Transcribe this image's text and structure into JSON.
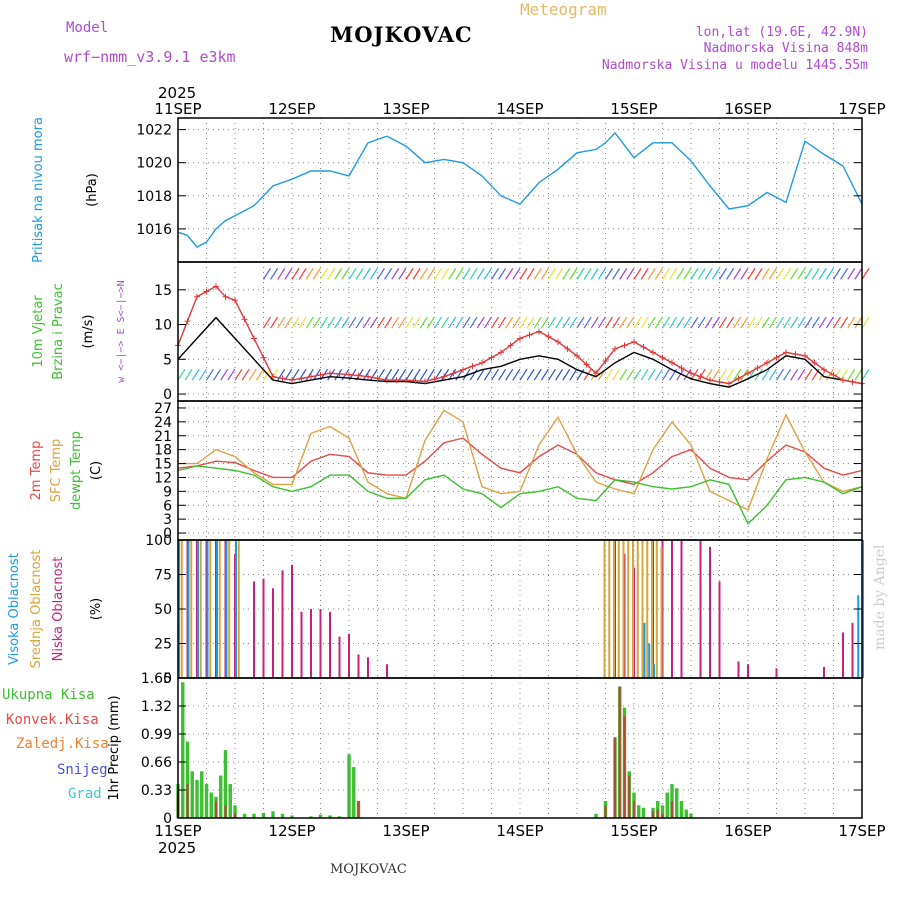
{
  "header": {
    "model_label": "Model",
    "model_name": "wrf−nmm_v3.9.1  e3km",
    "station": "MOJKOVAC",
    "product": "Meteogram",
    "lonlat": "lon,lat (19.6E, 42.9N)",
    "elevation": "Nadmorska Visina 848m",
    "model_elevation": "Nadmorska Visina u modelu 1445.55m",
    "credit": "made by Angel",
    "footer_station": "MOJKOVAC"
  },
  "colors": {
    "pressure": "#1e9be0",
    "gust": "#e03a3a",
    "wind": "#000000",
    "temp2m": "#e84848",
    "sfc": "#e0a040",
    "dewpt": "#3cc030",
    "cloud_high": "#1e9be0",
    "cloud_mid": "#d9a43a",
    "cloud_low": "#c8207a",
    "precip_total": "#3cc030",
    "precip_conv": "#b04a3a",
    "grid": "#888888"
  },
  "chart_data": {
    "type": "meteogram",
    "time_axis": {
      "year": "2025",
      "ticks": [
        "11SEP",
        "12SEP",
        "13SEP",
        "14SEP",
        "15SEP",
        "16SEP",
        "17SEP"
      ],
      "start_hour": 0,
      "end_hour": 144,
      "step_hours": 1
    },
    "panels": [
      {
        "id": "pressure",
        "ylabel_main": "Pritisak na nivou mora",
        "ylabel_unit": "(hPa)",
        "ylim": [
          1014.0,
          1022.7
        ],
        "yticks": [
          1016,
          1018,
          1020,
          1022
        ],
        "series": [
          {
            "name": "mslp",
            "hours": [
              0,
              2,
              4,
              6,
              8,
              10,
              12,
              16,
              20,
              24,
              28,
              32,
              36,
              40,
              44,
              48,
              52,
              56,
              60,
              64,
              68,
              72,
              76,
              80,
              84,
              88,
              90,
              92,
              96,
              100,
              104,
              108,
              112,
              116,
              120,
              124,
              128,
              132,
              136,
              140,
              144
            ],
            "values": [
              1015.8,
              1015.6,
              1014.9,
              1015.2,
              1016.0,
              1016.5,
              1016.8,
              1017.4,
              1018.6,
              1019.0,
              1019.5,
              1019.5,
              1019.2,
              1021.2,
              1021.6,
              1021.0,
              1020.0,
              1020.2,
              1020.0,
              1019.2,
              1018.0,
              1017.5,
              1018.8,
              1019.6,
              1020.6,
              1020.8,
              1021.2,
              1021.8,
              1020.3,
              1021.2,
              1021.2,
              1020.1,
              1018.6,
              1017.2,
              1017.4,
              1018.2,
              1017.6,
              1021.3,
              1020.5,
              1019.8,
              1017.5
            ]
          }
        ]
      },
      {
        "id": "wind",
        "ylabel_main": "10m Vjetar",
        "ylabel_sub": "Brzina i Pravac",
        "ylabel_unit": "(m/s)",
        "dir_hint": "w <−|−> E  S<−|−>N",
        "ylim": [
          -1,
          19
        ],
        "yticks": [
          0,
          5,
          10,
          15
        ],
        "series": [
          {
            "name": "wind_speed",
            "hours": [
              0,
              4,
              8,
              10,
              12,
              16,
              20,
              24,
              28,
              32,
              36,
              40,
              44,
              48,
              52,
              56,
              60,
              64,
              68,
              72,
              76,
              80,
              84,
              88,
              92,
              96,
              100,
              104,
              108,
              112,
              116,
              120,
              124,
              128,
              132,
              136,
              140,
              144
            ],
            "values": [
              5.0,
              8.0,
              11.0,
              9.5,
              8.0,
              5.0,
              2.0,
              1.5,
              2.0,
              2.5,
              2.3,
              2.0,
              1.8,
              1.8,
              1.5,
              2.0,
              2.5,
              3.5,
              4.0,
              5.0,
              5.5,
              5.0,
              3.5,
              2.5,
              4.5,
              6.0,
              5.0,
              3.5,
              2.2,
              1.5,
              1.0,
              2.2,
              3.5,
              5.5,
              5.0,
              2.5,
              2.0,
              1.5
            ]
          },
          {
            "name": "gust",
            "hours": [
              0,
              4,
              8,
              10,
              12,
              16,
              20,
              24,
              28,
              32,
              36,
              40,
              44,
              48,
              52,
              56,
              60,
              64,
              68,
              72,
              76,
              80,
              84,
              88,
              92,
              96,
              100,
              104,
              108,
              112,
              116,
              120,
              124,
              128,
              132,
              136,
              140,
              144
            ],
            "values": [
              7.0,
              14.0,
              15.5,
              14.0,
              13.5,
              8.0,
              2.5,
              2.0,
              2.5,
              3.0,
              2.8,
              2.5,
              2.0,
              2.0,
              1.8,
              2.5,
              3.5,
              4.5,
              6.0,
              8.0,
              9.0,
              7.5,
              5.5,
              3.0,
              6.5,
              7.5,
              6.0,
              4.5,
              3.0,
              2.0,
              1.5,
              3.0,
              4.5,
              6.0,
              5.5,
              3.5,
              2.0,
              1.5
            ]
          }
        ],
        "barb_rows": [
          {
            "level_ms": 16.5,
            "direction": "south-west",
            "shown_hours": [
              18,
              144
            ]
          },
          {
            "level_ms": 9.5,
            "direction": "south-west",
            "shown_hours": [
              18,
              144
            ]
          },
          {
            "level_ms": 2.0,
            "direction": "mixed",
            "shown_hours": [
              0,
              144
            ]
          }
        ]
      },
      {
        "id": "temperature",
        "ylabel_main": "2m Temp",
        "ylabel_sub": "SFC Temp",
        "ylabel_sub2": "dewpt Temp",
        "ylabel_unit": "(C)",
        "ylim": [
          -1.5,
          28.5
        ],
        "yticks": [
          0,
          3,
          6,
          9,
          12,
          15,
          18,
          21,
          24,
          27
        ],
        "series": [
          {
            "name": "t2m",
            "hours": [
              0,
              4,
              8,
              12,
              16,
              20,
              24,
              28,
              32,
              36,
              40,
              44,
              48,
              52,
              56,
              60,
              64,
              68,
              72,
              76,
              80,
              84,
              88,
              92,
              96,
              100,
              104,
              108,
              112,
              116,
              120,
              124,
              128,
              132,
              136,
              140,
              144
            ],
            "values": [
              14.0,
              14.5,
              15.5,
              15.2,
              13.5,
              12.0,
              12.0,
              15.5,
              17.0,
              16.5,
              13.0,
              12.5,
              12.5,
              15.5,
              19.5,
              20.5,
              17.0,
              14.0,
              13.0,
              16.5,
              19.0,
              17.0,
              13.0,
              11.5,
              10.5,
              13.0,
              16.5,
              18.0,
              14.0,
              12.0,
              11.5,
              15.5,
              19.0,
              17.5,
              14.0,
              12.5,
              13.5
            ]
          },
          {
            "name": "sfc",
            "hours": [
              0,
              4,
              8,
              12,
              16,
              20,
              24,
              28,
              32,
              36,
              40,
              44,
              48,
              52,
              56,
              60,
              64,
              68,
              72,
              76,
              80,
              84,
              88,
              92,
              96,
              100,
              104,
              108,
              112,
              116,
              120,
              124,
              128,
              132,
              136,
              140,
              144
            ],
            "values": [
              15.0,
              15.0,
              18.0,
              16.5,
              13.0,
              10.5,
              10.5,
              21.5,
              23.0,
              20.5,
              11.0,
              8.5,
              7.5,
              20.0,
              26.5,
              24.0,
              10.0,
              8.5,
              9.0,
              19.0,
              25.0,
              17.0,
              11.0,
              9.5,
              8.5,
              18.0,
              24.0,
              19.0,
              9.0,
              7.0,
              5.0,
              16.0,
              25.5,
              17.5,
              11.0,
              9.0,
              10.0
            ]
          },
          {
            "name": "dewpt",
            "hours": [
              0,
              4,
              8,
              12,
              16,
              20,
              24,
              28,
              32,
              36,
              40,
              44,
              48,
              52,
              56,
              60,
              64,
              68,
              72,
              76,
              80,
              84,
              88,
              92,
              96,
              100,
              104,
              108,
              112,
              116,
              120,
              124,
              128,
              132,
              136,
              140,
              144
            ],
            "values": [
              13.5,
              14.5,
              14.0,
              13.5,
              12.5,
              10.0,
              9.0,
              10.0,
              12.5,
              12.5,
              9.0,
              7.5,
              7.5,
              11.5,
              12.5,
              9.5,
              8.5,
              5.5,
              8.5,
              9.0,
              10.0,
              7.5,
              7.0,
              11.5,
              11.0,
              10.0,
              9.5,
              10.0,
              11.5,
              10.5,
              2.0,
              6.0,
              11.5,
              12.0,
              11.0,
              8.5,
              10.0
            ]
          }
        ]
      },
      {
        "id": "cloud",
        "ylabel_main": "Visoka Oblacnost",
        "ylabel_sub": "Srednja Oblacnost",
        "ylabel_sub2": "Niska Oblacnost",
        "ylabel_unit": "(%)",
        "ylim": [
          0,
          100
        ],
        "yticks": [
          0,
          25,
          50,
          75,
          100
        ],
        "series": [
          {
            "name": "low",
            "hours": [
              2,
              4,
              6,
              8,
              10,
              12,
              16,
              18,
              20,
              22,
              24,
              26,
              28,
              30,
              32,
              34,
              36,
              38,
              40,
              44,
              92,
              94,
              96,
              100,
              102,
              104,
              106,
              110,
              112,
              114,
              118,
              120,
              126,
              136,
              140,
              142
            ],
            "values": [
              100,
              100,
              100,
              100,
              100,
              90,
              70,
              72,
              65,
              78,
              82,
              48,
              50,
              50,
              48,
              30,
              32,
              17,
              15,
              10,
              100,
              90,
              80,
              100,
              100,
              100,
              100,
              100,
              95,
              70,
              12,
              10,
              7,
              8,
              33,
              40
            ]
          },
          {
            "name": "mid",
            "hours": [
              1,
              3,
              5,
              7,
              9,
              11,
              13,
              90,
              91,
              92,
              93,
              94,
              95,
              96,
              97,
              98,
              99,
              100,
              101,
              102
            ],
            "values": [
              100,
              100,
              100,
              100,
              100,
              100,
              100,
              100,
              100,
              100,
              100,
              100,
              100,
              100,
              100,
              100,
              100,
              100,
              100,
              95
            ]
          },
          {
            "name": "high",
            "hours": [
              0,
              2,
              4,
              6,
              8,
              10,
              12,
              98,
              99,
              100,
              143,
              144
            ],
            "values": [
              100,
              100,
              100,
              100,
              100,
              100,
              100,
              40,
              25,
              10,
              60,
              100
            ]
          }
        ]
      },
      {
        "id": "precip",
        "ylabel_main": "1hr Precip",
        "ylabel_unit": "(mm)",
        "legend": [
          "Ukupna Kisa",
          "Konvek.Kisa",
          "Zaledj.Kisa",
          "Snijeg",
          "Grad"
        ],
        "ylim": [
          0,
          1.65
        ],
        "yticks": [
          0,
          0.33,
          0.66,
          0.99,
          1.32,
          1.65
        ],
        "series": [
          {
            "name": "total",
            "hours": [
              0,
              1,
              2,
              3,
              4,
              5,
              6,
              7,
              8,
              9,
              10,
              11,
              12,
              14,
              16,
              18,
              20,
              22,
              24,
              28,
              30,
              32,
              34,
              36,
              37,
              38,
              88,
              90,
              92,
              93,
              94,
              95,
              96,
              97,
              98,
              100,
              101,
              102,
              103,
              104,
              105,
              106,
              107,
              108
            ],
            "values": [
              0.4,
              1.6,
              0.9,
              0.55,
              0.45,
              0.55,
              0.4,
              0.3,
              0.25,
              0.5,
              0.8,
              0.4,
              0.15,
              0.05,
              0.05,
              0.06,
              0.08,
              0.05,
              0.03,
              0.02,
              0.04,
              0.03,
              0.02,
              0.75,
              0.6,
              0.2,
              0.05,
              0.2,
              0.95,
              1.55,
              1.3,
              0.55,
              0.3,
              0.15,
              0.12,
              0.12,
              0.2,
              0.15,
              0.3,
              0.4,
              0.35,
              0.2,
              0.1,
              0.05
            ]
          },
          {
            "name": "convective",
            "hours": [
              0,
              2,
              8,
              10,
              12,
              38,
              90,
              92,
              93,
              94,
              95,
              96,
              100,
              101,
              102,
              104
            ],
            "values": [
              0.3,
              0.4,
              0.2,
              0.15,
              0.05,
              0.2,
              0.15,
              0.95,
              1.55,
              1.2,
              0.5,
              0.2,
              0.08,
              0.1,
              0.05,
              0.2
            ]
          }
        ]
      }
    ]
  }
}
